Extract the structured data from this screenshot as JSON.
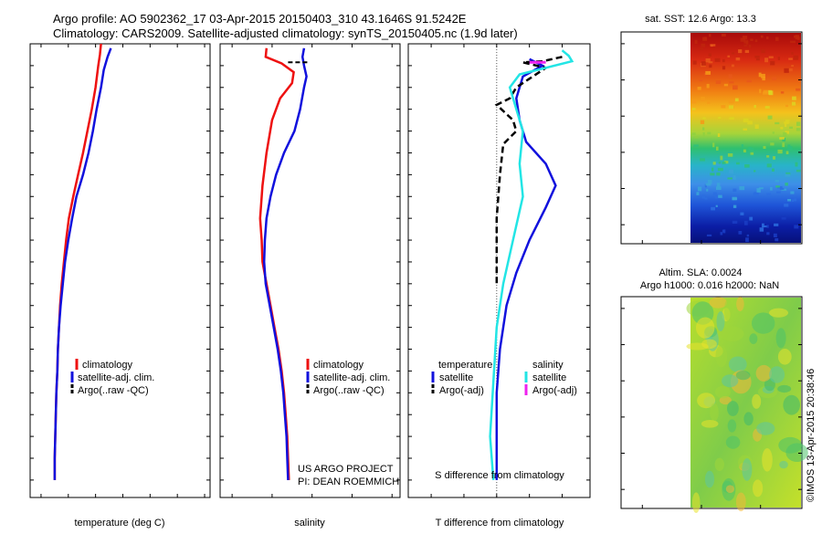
{
  "header": {
    "line1": "Argo profile: AO 5902362_17 03-Apr-2015 20150403_310 43.1646S 91.5242E",
    "line2": "Climatology: CARS2009. Satellite-adjusted climatology: synTS_20150405.nc (1.9d later)"
  },
  "colors": {
    "climatology": "#ee1111",
    "satellite": "#1111dd",
    "argo": "#000000",
    "sal_satellite": "#22e5e5",
    "sal_argo": "#ee22ee"
  },
  "depth_axis": {
    "ticks": [
      "0",
      "100",
      "200",
      "300",
      "400",
      "500",
      "600",
      "700",
      "800",
      "900",
      "1000",
      "1100",
      "1200",
      "1300",
      "1400",
      "1500",
      "1600",
      "1700",
      "1800",
      "1900",
      "2000"
    ],
    "range": [
      0,
      2080
    ]
  },
  "chart_data": [
    {
      "type": "line",
      "name": "temperature",
      "xlabel": "temperature (deg C)",
      "xlim": [
        -2,
        31
      ],
      "xticks": [
        "0",
        "5",
        "10",
        "15",
        "20",
        "25",
        "30"
      ],
      "legend": [
        "climatology",
        "satellite-adj. clim.",
        "Argo(..raw -QC)"
      ],
      "series": [
        {
          "name": "climatology",
          "points": [
            [
              11.0,
              0
            ],
            [
              10.8,
              50
            ],
            [
              10.5,
              100
            ],
            [
              10.0,
              200
            ],
            [
              9.3,
              300
            ],
            [
              8.5,
              400
            ],
            [
              7.7,
              500
            ],
            [
              6.8,
              600
            ],
            [
              5.9,
              700
            ],
            [
              5.1,
              800
            ],
            [
              4.6,
              900
            ],
            [
              4.2,
              1000
            ],
            [
              3.8,
              1100
            ],
            [
              3.5,
              1200
            ],
            [
              3.3,
              1300
            ],
            [
              3.1,
              1400
            ],
            [
              3.0,
              1500
            ],
            [
              2.8,
              1600
            ],
            [
              2.7,
              1700
            ],
            [
              2.6,
              1800
            ],
            [
              2.5,
              1900
            ],
            [
              2.5,
              2000
            ]
          ]
        },
        {
          "name": "satellite-adj. clim.",
          "points": [
            [
              12.8,
              20
            ],
            [
              12.2,
              60
            ],
            [
              11.5,
              120
            ],
            [
              11.0,
              200
            ],
            [
              10.2,
              300
            ],
            [
              9.5,
              400
            ],
            [
              8.7,
              500
            ],
            [
              7.7,
              600
            ],
            [
              6.5,
              700
            ],
            [
              5.7,
              800
            ],
            [
              5.0,
              900
            ],
            [
              4.4,
              1000
            ],
            [
              4.0,
              1100
            ],
            [
              3.6,
              1200
            ],
            [
              3.3,
              1300
            ],
            [
              3.1,
              1400
            ],
            [
              3.0,
              1500
            ],
            [
              2.8,
              1600
            ],
            [
              2.7,
              1700
            ],
            [
              2.6,
              1800
            ],
            [
              2.5,
              1900
            ],
            [
              2.5,
              2000
            ]
          ]
        }
      ]
    },
    {
      "type": "line",
      "name": "salinity",
      "xlabel": "salinity",
      "xlim": [
        33.85,
        36.1
      ],
      "xticks": [
        "34",
        "34.5",
        "35",
        "35.5",
        "36"
      ],
      "legend": [
        "climatology",
        "satellite-adj. clim.",
        "Argo(..raw -QC)"
      ],
      "series": [
        {
          "name": "climatology",
          "points": [
            [
              34.43,
              20
            ],
            [
              34.42,
              60
            ],
            [
              34.62,
              90
            ],
            [
              34.77,
              130
            ],
            [
              34.75,
              180
            ],
            [
              34.6,
              250
            ],
            [
              34.5,
              350
            ],
            [
              34.43,
              500
            ],
            [
              34.38,
              650
            ],
            [
              34.35,
              800
            ],
            [
              34.37,
              900
            ],
            [
              34.38,
              1000
            ],
            [
              34.43,
              1100
            ],
            [
              34.48,
              1200
            ],
            [
              34.53,
              1300
            ],
            [
              34.58,
              1400
            ],
            [
              34.62,
              1500
            ],
            [
              34.65,
              1600
            ],
            [
              34.67,
              1700
            ],
            [
              34.69,
              1800
            ],
            [
              34.7,
              1900
            ],
            [
              34.71,
              2000
            ]
          ]
        },
        {
          "name": "satellite-adj. clim.",
          "points": [
            [
              34.9,
              20
            ],
            [
              34.88,
              60
            ],
            [
              34.9,
              100
            ],
            [
              34.93,
              150
            ],
            [
              34.9,
              200
            ],
            [
              34.85,
              300
            ],
            [
              34.78,
              400
            ],
            [
              34.65,
              500
            ],
            [
              34.55,
              600
            ],
            [
              34.48,
              700
            ],
            [
              34.43,
              800
            ],
            [
              34.41,
              900
            ],
            [
              34.4,
              1000
            ],
            [
              34.42,
              1100
            ],
            [
              34.47,
              1200
            ],
            [
              34.52,
              1300
            ],
            [
              34.57,
              1400
            ],
            [
              34.61,
              1500
            ],
            [
              34.64,
              1600
            ],
            [
              34.66,
              1700
            ],
            [
              34.68,
              1800
            ],
            [
              34.69,
              1900
            ],
            [
              34.7,
              2000
            ]
          ]
        },
        {
          "name": "Argo(..raw -QC)",
          "points": [
            [
              34.7,
              85
            ],
            [
              34.95,
              85
            ]
          ]
        }
      ]
    },
    {
      "type": "line",
      "name": "difference",
      "xlabel": "T difference from climatology",
      "xlabel2": "S difference from climatology",
      "xlim": [
        -2.7,
        2.85
      ],
      "xticks": [
        "-2",
        "-1",
        "0",
        "1",
        "2"
      ],
      "xticks_s": [
        "-0.5",
        "-0.25",
        "0",
        "0.25",
        "0.5"
      ],
      "legend_titles": [
        "temperature",
        "salinity"
      ],
      "legend": [
        "satellite",
        "Argo(-adj)",
        "satellite",
        "Argo(-adj)"
      ],
      "series": [
        {
          "name": "temperature satellite",
          "points": [
            [
              1.0,
              70
            ],
            [
              1.4,
              100
            ],
            [
              0.8,
              150
            ],
            [
              0.6,
              250
            ],
            [
              0.7,
              350
            ],
            [
              0.9,
              450
            ],
            [
              1.5,
              550
            ],
            [
              1.8,
              650
            ],
            [
              1.5,
              750
            ],
            [
              1.0,
              900
            ],
            [
              0.6,
              1050
            ],
            [
              0.3,
              1200
            ],
            [
              0.1,
              1400
            ],
            [
              0,
              1600
            ],
            [
              0,
              1800
            ],
            [
              0,
              2000
            ]
          ]
        },
        {
          "name": "temperature Argo(-adj)",
          "points": [
            [
              2.0,
              60
            ],
            [
              1.4,
              80
            ],
            [
              0.8,
              85
            ],
            [
              1.5,
              110
            ],
            [
              1.0,
              160
            ],
            [
              0.6,
              200
            ],
            [
              0.4,
              250
            ],
            [
              0,
              280
            ],
            [
              0.5,
              350
            ],
            [
              0.6,
              400
            ],
            [
              0.2,
              460
            ],
            [
              0.1,
              600
            ],
            [
              0,
              800
            ],
            [
              0,
              1000
            ],
            [
              0,
              1100
            ]
          ]
        },
        {
          "name": "salinity satellite",
          "points": [
            [
              2.0,
              30
            ],
            [
              2.2,
              55
            ],
            [
              2.3,
              80
            ],
            [
              0.7,
              140
            ],
            [
              0.4,
              200
            ],
            [
              0.8,
              400
            ],
            [
              0.7,
              550
            ],
            [
              0.8,
              700
            ],
            [
              0.5,
              900
            ],
            [
              0.2,
              1100
            ],
            [
              0,
              1300
            ],
            [
              -0.2,
              1800
            ],
            [
              -0.1,
              2000
            ]
          ]
        },
        {
          "name": "salinity Argo(-adj)",
          "points": [
            [
              1.0,
              85
            ],
            [
              1.5,
              85
            ]
          ]
        }
      ]
    }
  ],
  "text_blocks": {
    "project": "US ARGO PROJECT",
    "pi": "PI: DEAN ROEMMICH"
  },
  "maps": {
    "sst_title": "sat. SST: 12.6 Argo: 13.3",
    "sla_title1": "Altim. SLA: 0.0024",
    "sla_title2": "Argo h1000: 0.016 h2000: NaN",
    "yticks": [
      "-38",
      "-40",
      "-42",
      "-44",
      "-46",
      "-48"
    ],
    "xticks": [
      "85",
      "90",
      "95"
    ],
    "stamp": "©IMOS 13-Apr-2015 20:38:46"
  }
}
